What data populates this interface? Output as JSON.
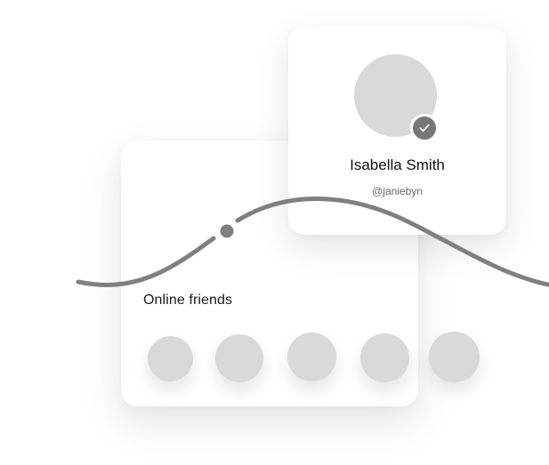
{
  "friends_card": {
    "title": "Online friends",
    "friends_count_shown": 5
  },
  "profile": {
    "name": "Isabella Smith",
    "handle": "@janiebyn",
    "verified": true
  },
  "icons": {
    "verified": "check-icon"
  },
  "colors": {
    "placeholder": "#d9d9d9",
    "wave": "#808080",
    "badge": "#777777",
    "text_primary": "#111111",
    "text_secondary": "#666666"
  }
}
